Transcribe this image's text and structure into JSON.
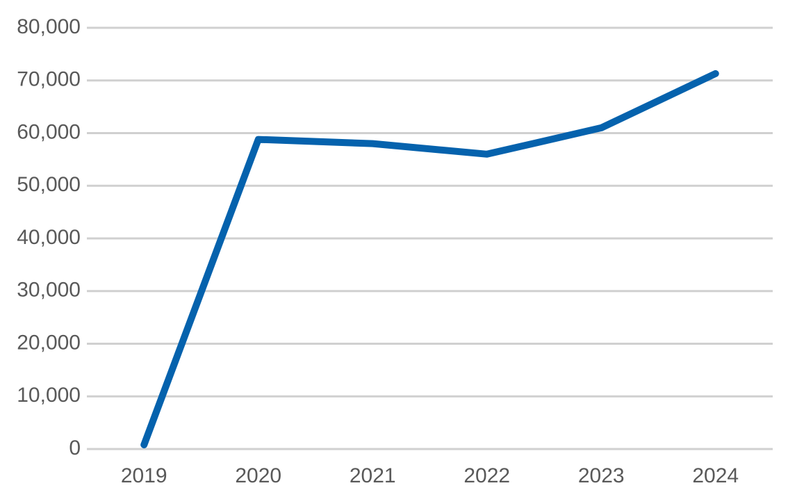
{
  "chart_data": {
    "type": "line",
    "categories": [
      "2019",
      "2020",
      "2021",
      "2022",
      "2023",
      "2024"
    ],
    "series": [
      {
        "color": "#0562ad",
        "values": [
          800,
          58800,
          58000,
          56000,
          61000,
          71300
        ]
      }
    ],
    "ylim": [
      0,
      80000
    ],
    "yticks": [
      0,
      {
        "value": 10000,
        "label": "10,000"
      },
      {
        "value": 20000,
        "label": "20,000"
      },
      {
        "value": 30000,
        "label": "30,000"
      },
      {
        "value": 40000,
        "label": "40,000"
      },
      {
        "value": 50000,
        "label": "50,000"
      },
      {
        "value": 60000,
        "label": "60,000"
      },
      {
        "value": 70000,
        "label": "70,000"
      },
      {
        "value": 80000,
        "label": "80,000"
      }
    ],
    "grid": true
  }
}
